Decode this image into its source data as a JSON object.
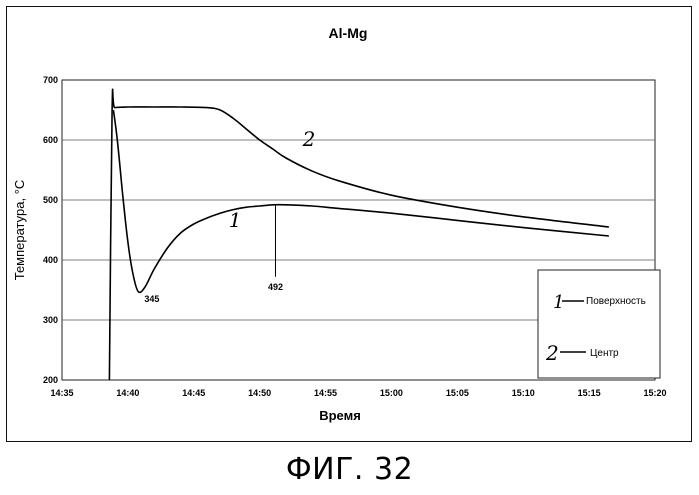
{
  "chart_data": {
    "type": "line",
    "title": "Al-Mg",
    "xlabel": "Время",
    "ylabel": "Температура, °C",
    "x_ticks": [
      "14:35",
      "14:40",
      "14:45",
      "14:50",
      "14:55",
      "15:00",
      "15:05",
      "15:10",
      "15:15",
      "15:20"
    ],
    "y_ticks": [
      "200",
      "300",
      "400",
      "500",
      "600",
      "700"
    ],
    "xlim": [
      "14:35",
      "15:20"
    ],
    "ylim": [
      200,
      700
    ],
    "grid": "horizontal",
    "legend_position": "bottom-right",
    "legend": [
      {
        "mark": "1",
        "label": "Поверхность"
      },
      {
        "mark": "2",
        "label": "Центр"
      }
    ],
    "series": [
      {
        "mark": "1",
        "x": [
          "14:38.9",
          "14:39.2",
          "14:39.6",
          "14:40.0",
          "14:40.4",
          "14:40.8",
          "14:41.3",
          "14:42",
          "14:43",
          "14:44",
          "14:45",
          "14:46",
          "14:47",
          "14:48",
          "14:49",
          "14:50",
          "14:51",
          "14:52",
          "14:54",
          "14:56",
          "15:00",
          "15:05",
          "15:10",
          "15:16.5"
        ],
        "y": [
          650,
          600,
          510,
          430,
          375,
          347,
          355,
          385,
          420,
          445,
          460,
          470,
          478,
          484,
          488,
          490,
          492,
          492,
          490,
          486,
          478,
          466,
          454,
          440
        ]
      },
      {
        "mark": "2",
        "x": [
          "14:38.6",
          "14:38.8",
          "14:39",
          "14:40",
          "14:42",
          "14:44",
          "14:46",
          "14:47",
          "14:48",
          "14:49",
          "14:50",
          "14:51",
          "14:52",
          "14:54",
          "14:56",
          "15:00",
          "15:05",
          "15:10",
          "15:16.5"
        ],
        "y": [
          200,
          650,
          654,
          655,
          655,
          655,
          654,
          650,
          636,
          618,
          600,
          585,
          570,
          548,
          532,
          508,
          488,
          472,
          455
        ]
      }
    ],
    "annotations": [
      {
        "text": "345",
        "x": "14:40.8",
        "y": 347
      },
      {
        "text": "492",
        "x": "14:51.2",
        "y": 492
      }
    ]
  },
  "caption": "ФИГ. 32"
}
